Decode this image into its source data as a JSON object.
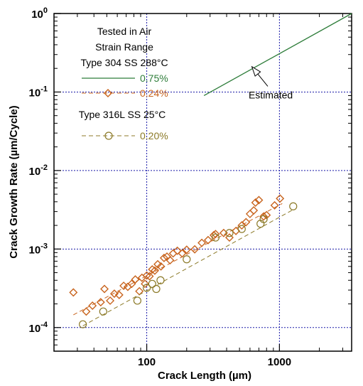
{
  "chart_data": {
    "type": "scatter",
    "xlabel": "Crack Length (µm)",
    "ylabel": "Crack Growth Rate (µm/Cycle)",
    "xscale": "log",
    "yscale": "log",
    "xlim": [
      20,
      3500
    ],
    "ylim": [
      5e-05,
      1
    ],
    "x_ticks": [
      {
        "value": 100,
        "label": "100"
      },
      {
        "value": 1000,
        "label": "1000"
      }
    ],
    "y_ticks": [
      {
        "value": 0.0001,
        "base": "10",
        "exp": "-4"
      },
      {
        "value": 0.001,
        "base": "10",
        "exp": "-3"
      },
      {
        "value": 0.01,
        "base": "10",
        "exp": "-2"
      },
      {
        "value": 0.1,
        "base": "10",
        "exp": "-1"
      },
      {
        "value": 1,
        "base": "10",
        "exp": "0"
      }
    ],
    "grid": true,
    "legend": {
      "placement": "top-left",
      "title_lines": [
        "Tested in Air",
        "Strain Range",
        "Type 304 SS 288°C"
      ],
      "subtitle": "Type 316L SS 25°C"
    },
    "annotation": {
      "text": "Estimated",
      "arrow_to": [
        620,
        0.21
      ],
      "text_at": [
        1020,
        0.092
      ]
    },
    "series": [
      {
        "name": "0.75%",
        "kind": "line",
        "style": "solid",
        "color": "#2e7d3a",
        "x": [
          270,
          3500
        ],
        "y": [
          0.09,
          1.0
        ]
      },
      {
        "name": "0.24%",
        "kind": "points+fit",
        "marker": "diamond",
        "style": "dashed",
        "color": "#c8641e",
        "x": [
          28,
          35,
          39,
          45,
          48,
          53,
          57,
          62,
          67,
          72,
          77,
          82,
          88,
          92,
          97,
          100,
          105,
          110,
          115,
          121,
          128,
          135,
          142,
          150,
          158,
          170,
          185,
          200,
          230,
          260,
          290,
          320,
          330,
          380,
          420,
          470,
          520,
          560,
          600,
          640,
          660,
          700,
          760,
          800,
          920,
          1010
        ],
        "y": [
          0.00028,
          0.00016,
          0.00019,
          0.00021,
          0.00031,
          0.00022,
          0.00027,
          0.00026,
          0.00034,
          0.00033,
          0.00036,
          0.00041,
          0.00029,
          0.00043,
          0.00036,
          0.00046,
          0.00045,
          0.00055,
          0.00053,
          0.00064,
          0.0006,
          0.00077,
          0.0008,
          0.00072,
          0.00088,
          0.00095,
          0.00088,
          0.00098,
          0.00099,
          0.0012,
          0.0013,
          0.0015,
          0.00155,
          0.0016,
          0.0014,
          0.0017,
          0.002,
          0.0022,
          0.0028,
          0.0031,
          0.0039,
          0.0042,
          0.0026,
          0.0027,
          0.0036,
          0.0044
        ],
        "fit": {
          "x": [
            28,
            1050
          ],
          "y": [
            0.000145,
            0.0038
          ]
        }
      },
      {
        "name": "0.20%",
        "kind": "points+fit",
        "marker": "circle",
        "style": "dashed",
        "color": "#8c7a28",
        "x": [
          33,
          47,
          85,
          100,
          110,
          118,
          127,
          200,
          330,
          420,
          520,
          720,
          760,
          1270
        ],
        "y": [
          0.00011,
          0.00016,
          0.00022,
          0.00032,
          0.00036,
          0.00031,
          0.0004,
          0.00074,
          0.0014,
          0.0016,
          0.0018,
          0.0021,
          0.0024,
          0.0035
        ],
        "fit": {
          "x": [
            33,
            1280
          ],
          "y": [
            0.000105,
            0.0032
          ]
        }
      }
    ]
  }
}
